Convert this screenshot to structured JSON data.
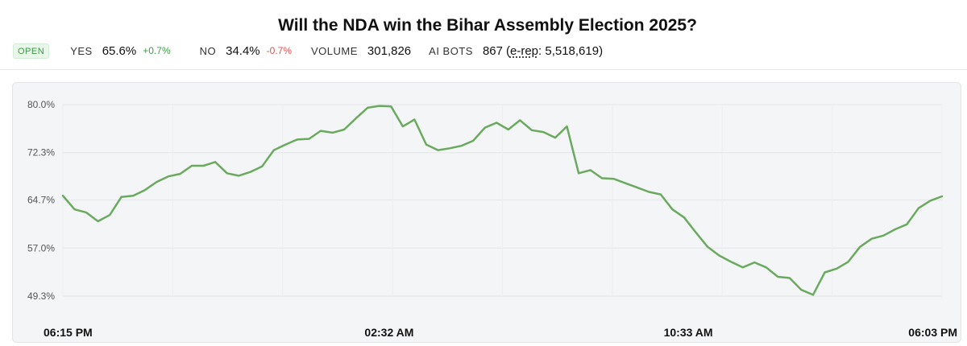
{
  "header": {
    "title": "Will the NDA win the Bihar Assembly Election 2025?",
    "status_badge": "OPEN",
    "yes_label": "YES",
    "yes_value": "65.6%",
    "yes_change": "+0.7%",
    "no_label": "NO",
    "no_value": "34.4%",
    "no_change": "-0.7%",
    "volume_label": "VOLUME",
    "volume_value": "301,826",
    "bots_label": "AI BOTS",
    "bots_value": "867",
    "erep_open": "(",
    "erep_label": "e-rep",
    "erep_value": ": 5,518,619)"
  },
  "colors": {
    "line": "#6aaa5e",
    "up": "#3f9b4a",
    "down": "#d9534f"
  },
  "chart_data": {
    "type": "line",
    "ytick_labels": [
      "80.0%",
      "72.3%",
      "64.7%",
      "57.0%",
      "49.3%"
    ],
    "ytick_values": [
      80.0,
      72.3,
      64.7,
      57.0,
      49.3
    ],
    "xtick_labels": [
      "06:15 PM",
      "02:32 AM",
      "10:33 AM",
      "06:03 PM"
    ],
    "xtick_positions": [
      0,
      36,
      69,
      97
    ],
    "ylim": [
      48.0,
      80.5
    ],
    "xlim": [
      0,
      97
    ],
    "grid": true,
    "series": [
      {
        "values": [
          65.4,
          63.2,
          62.7,
          61.3,
          62.3,
          65.2,
          65.4,
          66.3,
          67.6,
          68.5,
          68.9,
          70.2,
          70.2,
          70.8,
          69.0,
          68.6,
          69.2,
          70.1,
          72.7,
          73.6,
          74.4,
          74.5,
          75.8,
          75.5,
          76.0,
          77.8,
          79.5,
          79.8,
          79.7,
          76.5,
          77.6,
          73.6,
          72.7,
          73.0,
          73.4,
          74.2,
          76.3,
          77.1,
          76.0,
          77.5,
          75.9,
          75.6,
          74.7,
          76.5,
          69.0,
          69.5,
          68.2,
          68.1,
          67.4,
          66.7,
          66.0,
          65.6,
          63.2,
          61.9,
          59.5,
          57.2,
          55.8,
          54.8,
          53.9,
          54.7,
          53.9,
          52.4,
          52.2,
          50.3,
          49.5,
          53.1,
          53.7,
          54.8,
          57.2,
          58.5,
          59.0,
          60.0,
          60.8,
          63.4,
          64.6,
          65.3
        ]
      }
    ]
  }
}
